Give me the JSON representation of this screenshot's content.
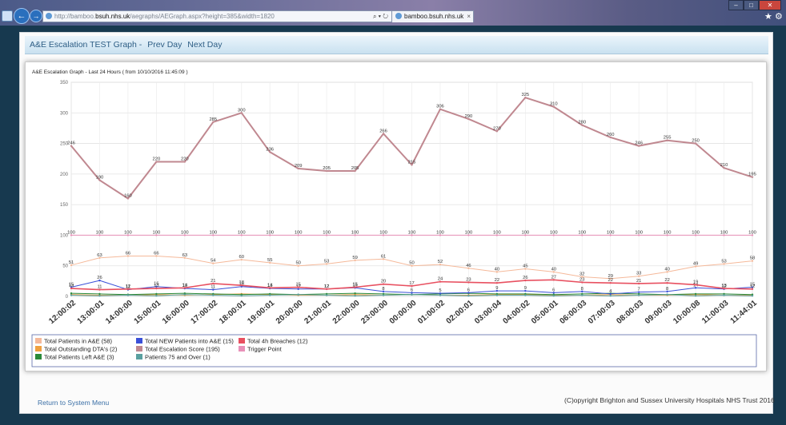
{
  "browser": {
    "address_host_prefix": "http://bamboo.",
    "address_host": "bsuh.nhs.uk",
    "address_path": "/aegraphs/AEGraph.aspx?height=385&width=1820",
    "search_icons": "⌕ ▾ ↻",
    "tab_title": "bamboo.bsuh.nhs.uk",
    "tab_close": "×"
  },
  "page": {
    "title": "A&E Escalation TEST Graph -",
    "prev_day": "Prev Day",
    "next_day": "Next Day",
    "footer_link": "Return to System Menu",
    "copyright": "(C)opyright Brighton and Sussex University Hospitals NHS Trust 2016"
  },
  "chart_data": {
    "type": "line",
    "title": "A&E Escalation Graph - Last 24 Hours ( from 10/10/2016 11:45:09 )",
    "ylim": [
      0,
      350
    ],
    "yticks": [
      0,
      50,
      100,
      150,
      200,
      250,
      300,
      350
    ],
    "grid": true,
    "legend_position": "bottom",
    "x": [
      "12:00:02",
      "13:00:01",
      "14:00:00",
      "15:00:01",
      "16:00:00",
      "17:00:02",
      "18:00:01",
      "19:00:01",
      "20:00:00",
      "21:00:01",
      "22:00:00",
      "23:00:00",
      "00:00:00",
      "01:00:02",
      "02:00:01",
      "03:00:04",
      "04:00:02",
      "05:00:01",
      "06:00:03",
      "07:00:03",
      "08:00:03",
      "09:00:03",
      "10:00:08",
      "11:00:03",
      "11:44:01"
    ],
    "series": [
      {
        "name": "Total Patients in A&E (58)",
        "color": "#f5b99a",
        "width": 1,
        "labels": true,
        "values": [
          51,
          63,
          66,
          66,
          63,
          54,
          60,
          55,
          50,
          53,
          59,
          61,
          50,
          52,
          46,
          40,
          45,
          40,
          32,
          29,
          33,
          40,
          49,
          53,
          58
        ]
      },
      {
        "name": "Total NEW Patients into A&E (15)",
        "color": "#3a50d8",
        "width": 1,
        "labels": true,
        "values": [
          15,
          26,
          11,
          16,
          13,
          11,
          16,
          13,
          12,
          12,
          14,
          8,
          6,
          5,
          6,
          9,
          9,
          6,
          8,
          4,
          7,
          8,
          14,
          12,
          15
        ]
      },
      {
        "name": "Total 4h Breaches (12)",
        "color": "#e85060",
        "width": 1.6,
        "labels": true,
        "values": [
          13,
          11,
          12,
          13,
          14,
          21,
          18,
          14,
          15,
          12,
          15,
          20,
          17,
          24,
          23,
          22,
          26,
          27,
          23,
          22,
          21,
          22,
          19,
          13,
          12
        ]
      },
      {
        "name": "Total Outstanding DTA's (2)",
        "color": "#f0a040",
        "width": 1,
        "labels": false,
        "values": [
          3,
          2,
          2,
          3,
          2,
          3,
          4,
          3,
          2,
          2,
          3,
          2,
          3,
          2,
          2,
          3,
          3,
          2,
          2,
          3,
          2,
          2,
          3,
          2,
          2
        ]
      },
      {
        "name": "Total Escalation Score (195)",
        "color": "#c08890",
        "width": 2,
        "labels": true,
        "values": [
          246,
          190,
          160,
          220,
          220,
          285,
          300,
          236,
          209,
          205,
          205,
          266,
          215,
          306,
          290,
          270,
          325,
          310,
          280,
          260,
          246,
          255,
          250,
          210,
          195
        ]
      },
      {
        "name": "Trigger Point",
        "color": "#e890b8",
        "width": 1,
        "labels": true,
        "values": [
          100,
          100,
          100,
          100,
          100,
          100,
          100,
          100,
          100,
          100,
          100,
          100,
          100,
          100,
          100,
          100,
          100,
          100,
          100,
          100,
          100,
          100,
          100,
          100,
          100
        ]
      },
      {
        "name": "Total Patients Left A&E (3)",
        "color": "#2a8a3a",
        "width": 1,
        "labels": false,
        "values": [
          5,
          4,
          3,
          4,
          5,
          4,
          3,
          4,
          3,
          4,
          5,
          4,
          3,
          4,
          5,
          4,
          4,
          3,
          4,
          5,
          4,
          3,
          4,
          4,
          3
        ]
      },
      {
        "name": "Patients 75 and Over (1)",
        "color": "#5aa0a0",
        "width": 1,
        "labels": false,
        "values": [
          2,
          1,
          2,
          1,
          3,
          2,
          1,
          2,
          3,
          2,
          1,
          2,
          3,
          2,
          1,
          2,
          2,
          1,
          2,
          1,
          2,
          3,
          1,
          2,
          1
        ]
      }
    ]
  }
}
